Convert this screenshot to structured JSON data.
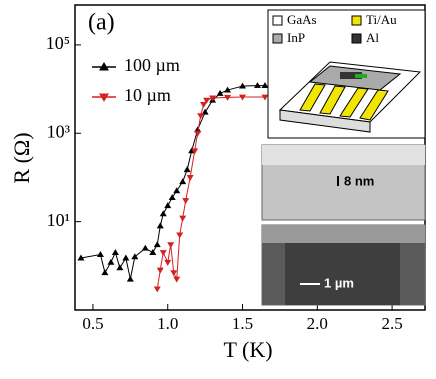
{
  "chart_data": {
    "type": "scatter",
    "panel_label": "(a)",
    "xlabel": "T (K)",
    "ylabel": "R (Ω)",
    "xlim": [
      0.38,
      2.72
    ],
    "xticks": [
      0.5,
      {
        "value": 1,
        "label": "1.0"
      },
      1.5,
      {
        "value": 2,
        "label": "2.0"
      },
      2.5
    ],
    "ylim": [
      0.1,
      800000
    ],
    "log_y": true,
    "yticks": [
      {
        "value": 10,
        "label": "10¹"
      },
      {
        "value": 1000,
        "label": "10³"
      },
      {
        "value": 100000,
        "label": "10⁵"
      }
    ],
    "legend": "upper left",
    "series": [
      {
        "name": "100 µm",
        "color": "#000000",
        "marker": "triangle-up",
        "x": [
          0.42,
          0.55,
          0.58,
          0.62,
          0.65,
          0.68,
          0.72,
          0.75,
          0.78,
          0.85,
          0.9,
          0.93,
          0.95,
          0.97,
          1.0,
          1.03,
          1.06,
          1.1,
          1.13,
          1.16,
          1.2,
          1.25,
          1.3,
          1.35,
          1.4,
          1.5,
          1.6,
          1.65
        ],
        "values": [
          1.5,
          1.8,
          0.7,
          1.2,
          2,
          0.9,
          1.5,
          0.5,
          1.6,
          2.5,
          2,
          3,
          8,
          15,
          23,
          35,
          50,
          80,
          150,
          400,
          1200,
          3000,
          5600,
          8000,
          9500,
          11700,
          12000,
          12000
        ]
      },
      {
        "name": "10 µm",
        "color": "#d42020",
        "marker": "triangle-down",
        "x": [
          0.93,
          0.95,
          0.97,
          1.0,
          1.02,
          1.04,
          1.06,
          1.08,
          1.1,
          1.12,
          1.15,
          1.18,
          1.2,
          1.22,
          1.24,
          1.26,
          1.3,
          1.4,
          1.5,
          1.65
        ],
        "values": [
          0.3,
          0.8,
          2,
          1.2,
          3,
          0.7,
          0.5,
          5,
          12,
          30,
          100,
          400,
          1000,
          2500,
          4500,
          5600,
          6300,
          6500,
          6600,
          6600
        ]
      }
    ]
  },
  "insets": {
    "schematic": {
      "legend": [
        "GaAs",
        "Ti/Au",
        "InP",
        "Al"
      ]
    },
    "sem_images": [
      {
        "scale_label": "8 nm"
      },
      {
        "scale_label": "1 µm"
      }
    ]
  }
}
